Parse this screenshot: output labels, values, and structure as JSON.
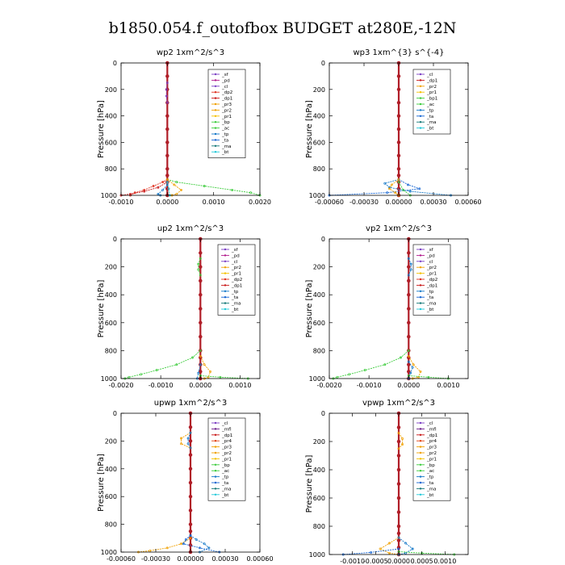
{
  "title": "b1850.054.f_outofbox  BUDGET at280E,-12N",
  "colors": {
    "sf": "#7b3fc4",
    "pd": "#b0188a",
    "cl": "#7b3fc4",
    "dp2": "#e0301e",
    "dp1": "#c81414",
    "pr3": "#f0a000",
    "pr2": "#f0a000",
    "pr1": "#f5c000",
    "bp": "#3ccc3c",
    "ac": "#3ccc3c",
    "tp": "#1478c8",
    "ta": "#1464d2",
    "ma": "#147878",
    "bt": "#20c8d8",
    "mfl": "#6a1a8a",
    "dp4": "#a01010",
    "pr4": "#e04010",
    "bp1": "#3ccc3c",
    "trunk": "#b01e28",
    "frame": "#000000"
  },
  "chart_data": [
    {
      "type": "line",
      "title": "wp2   1xm^2/s^3",
      "ylabel": "Pressure  [hPa]",
      "xlim": [
        -0.001,
        0.002
      ],
      "ylim": [
        1000,
        0
      ],
      "xticks": [
        "-0.0010",
        "0.0000",
        "0.0010",
        "0.0020"
      ],
      "xtick_values": [
        -0.001,
        0.0,
        0.001,
        0.002
      ],
      "yticks": [
        "0",
        "200",
        "400",
        "600",
        "800",
        "1000"
      ],
      "ytick_values": [
        0,
        200,
        400,
        600,
        800,
        1000
      ],
      "legend": [
        "_sf",
        "_pd",
        "_cl",
        "_dp2",
        "_dp1",
        "_pr3",
        "_pr2",
        "_pr1",
        "_bp",
        "_ac",
        "_tp",
        "_ta",
        "_ma",
        "_bt"
      ],
      "legend_position": "top-right",
      "series": [
        {
          "key": "trunk",
          "p": [
            0,
            100,
            200,
            300,
            400,
            500,
            600,
            700,
            800,
            850,
            900,
            950,
            1000
          ],
          "x": [
            0,
            0,
            0,
            0,
            0,
            0,
            0,
            0,
            0,
            0,
            0,
            0,
            0
          ]
        },
        {
          "key": "cl",
          "p": [
            150,
            200,
            250,
            300
          ],
          "x": [
            0,
            -2e-05,
            -2e-05,
            0
          ]
        },
        {
          "key": "ac",
          "p": [
            880,
            900,
            930,
            960,
            980,
            1000
          ],
          "x": [
            0,
            0.0002,
            0.0008,
            0.0014,
            0.0018,
            0.002
          ]
        },
        {
          "key": "dp2",
          "p": [
            880,
            900,
            930,
            960,
            980,
            1000
          ],
          "x": [
            0,
            -0.0001,
            -0.0003,
            -0.0005,
            -0.0007,
            -0.0008
          ]
        },
        {
          "key": "dp1",
          "p": [
            900,
            940,
            970,
            990,
            1000
          ],
          "x": [
            0,
            -0.0002,
            -0.0005,
            -0.0008,
            -0.001
          ]
        },
        {
          "key": "pr2",
          "p": [
            880,
            920,
            960,
            990,
            1000
          ],
          "x": [
            0,
            0.00015,
            0.0003,
            0.0002,
            0.0001
          ]
        },
        {
          "key": "tp",
          "p": [
            920,
            960,
            990,
            1000
          ],
          "x": [
            0,
            -0.0001,
            -0.0002,
            -0.00015
          ]
        },
        {
          "key": "bt",
          "p": [
            900,
            950,
            1000
          ],
          "x": [
            0,
            3e-05,
            5e-05
          ]
        }
      ]
    },
    {
      "type": "line",
      "title": "wp3   1xm^{3} s^{-4}",
      "ylabel": "Pressure  [hPa]",
      "xlim": [
        -0.0006,
        0.0006
      ],
      "ylim": [
        1000,
        0
      ],
      "xticks": [
        "-0.00060",
        "-0.00030",
        "0.00000",
        "0.00030",
        "0.00060"
      ],
      "xtick_values": [
        -0.0006,
        -0.0003,
        0.0,
        0.0003,
        0.0006
      ],
      "yticks": [
        "0",
        "200",
        "400",
        "600",
        "800",
        "1000"
      ],
      "ytick_values": [
        0,
        200,
        400,
        600,
        800,
        1000
      ],
      "legend": [
        "_cl",
        "_dp1",
        "_pr2",
        "_pr1",
        "_bp1",
        "_ac",
        "_tp",
        "_ta",
        "_ma",
        "_bt"
      ],
      "legend_position": "top-right",
      "series": [
        {
          "key": "trunk",
          "p": [
            0,
            100,
            200,
            300,
            400,
            500,
            600,
            700,
            800,
            850,
            900,
            950,
            1000
          ],
          "x": [
            0,
            0,
            0,
            0,
            0,
            0,
            0,
            0,
            0,
            0,
            0,
            0,
            0
          ]
        },
        {
          "key": "tp",
          "p": [
            880,
            910,
            940,
            970,
            1000
          ],
          "x": [
            0,
            -0.00012,
            -8e-05,
            0.0001,
            0.00045
          ]
        },
        {
          "key": "ta",
          "p": [
            880,
            920,
            950,
            980,
            1000
          ],
          "x": [
            0,
            8e-05,
            0.00018,
            -0.0001,
            -0.0006
          ]
        },
        {
          "key": "pr2",
          "p": [
            880,
            920,
            950,
            980,
            1000
          ],
          "x": [
            0,
            -6e-05,
            -8e-05,
            -3e-05,
            0
          ]
        },
        {
          "key": "ac",
          "p": [
            900,
            960,
            1000
          ],
          "x": [
            0,
            4e-05,
            0.0001
          ]
        }
      ]
    },
    {
      "type": "line",
      "title": "up2   1xm^2/s^3",
      "ylabel": "Pressure  [hPa]",
      "xlim": [
        -0.002,
        0.0015
      ],
      "ylim": [
        1000,
        0
      ],
      "xticks": [
        "-0.0020",
        "-0.0010",
        "0.0000",
        "0.0010"
      ],
      "xtick_values": [
        -0.002,
        -0.001,
        0.0,
        0.001
      ],
      "yticks": [
        "0",
        "200",
        "400",
        "600",
        "800",
        "1000"
      ],
      "ytick_values": [
        0,
        200,
        400,
        600,
        800,
        1000
      ],
      "legend": [
        "_sf",
        "_pd",
        "_cl",
        "_pr2",
        "_pr1",
        "_dp2",
        "_dp1",
        "_tp",
        "_ta",
        "_ma",
        "_bt"
      ],
      "legend_position": "top-right",
      "series": [
        {
          "key": "trunk",
          "p": [
            0,
            100,
            200,
            300,
            400,
            500,
            600,
            700,
            800,
            850,
            900,
            950,
            1000
          ],
          "x": [
            0,
            0,
            0,
            0,
            0,
            0,
            0,
            0,
            0,
            0,
            0,
            0,
            0
          ]
        },
        {
          "key": "ac",
          "p": [
            140,
            180,
            220,
            260
          ],
          "x": [
            0,
            -5e-05,
            -5e-05,
            0
          ]
        },
        {
          "key": "ac",
          "p": [
            800,
            850,
            900,
            940,
            970,
            990,
            1000
          ],
          "x": [
            0,
            -0.0002,
            -0.0006,
            -0.0011,
            -0.0015,
            -0.0018,
            -0.0019
          ]
        },
        {
          "key": "pr2",
          "p": [
            840,
            900,
            950,
            990,
            1000
          ],
          "x": [
            0,
            0.0001,
            0.00025,
            0.0002,
            0.0001
          ]
        },
        {
          "key": "bp",
          "p": [
            980,
            990,
            1000
          ],
          "x": [
            0,
            0.0005,
            0.0012
          ]
        },
        {
          "key": "tp",
          "p": [
            900,
            960,
            1000
          ],
          "x": [
            0,
            -5e-05,
            -8e-05
          ]
        }
      ]
    },
    {
      "type": "line",
      "title": "vp2   1xm^2/s^3",
      "ylabel": "Pressure  [hPa]",
      "xlim": [
        -0.002,
        0.0015
      ],
      "ylim": [
        1000,
        0
      ],
      "xticks": [
        "-0.0020",
        "-0.0010",
        "0.0000",
        "0.0010"
      ],
      "xtick_values": [
        -0.002,
        -0.001,
        0.0,
        0.001
      ],
      "yticks": [
        "0",
        "200",
        "400",
        "600",
        "800",
        "1000"
      ],
      "ytick_values": [
        0,
        200,
        400,
        600,
        800,
        1000
      ],
      "legend": [
        "_sf",
        "_pd",
        "_cl",
        "_pr2",
        "_pr1",
        "_dp2",
        "_dp1",
        "_tp",
        "_ta",
        "_ma",
        "_bt"
      ],
      "legend_position": "top-right",
      "series": [
        {
          "key": "trunk",
          "p": [
            0,
            100,
            200,
            300,
            400,
            500,
            600,
            700,
            800,
            850,
            900,
            950,
            1000
          ],
          "x": [
            0,
            0,
            0,
            0,
            0,
            0,
            0,
            0,
            0,
            0,
            0,
            0,
            0
          ]
        },
        {
          "key": "tp",
          "p": [
            140,
            180,
            220,
            260
          ],
          "x": [
            0,
            6e-05,
            6e-05,
            0
          ]
        },
        {
          "key": "ac",
          "p": [
            800,
            850,
            900,
            940,
            970,
            990,
            1000
          ],
          "x": [
            0,
            -0.0002,
            -0.0006,
            -0.0011,
            -0.0015,
            -0.0018,
            -0.0019
          ]
        },
        {
          "key": "pr2",
          "p": [
            840,
            900,
            950,
            990,
            1000
          ],
          "x": [
            0,
            0.00012,
            0.0003,
            0.00025,
            0.0001
          ]
        },
        {
          "key": "tp",
          "p": [
            880,
            920,
            960,
            1000
          ],
          "x": [
            0,
            0.0001,
            5e-05,
            0
          ]
        },
        {
          "key": "bp",
          "p": [
            980,
            990,
            1000
          ],
          "x": [
            0,
            0.0005,
            0.001
          ]
        }
      ]
    },
    {
      "type": "line",
      "title": "upwp   1xm^2/s^3",
      "ylabel": "Pressure  [hPa]",
      "xlim": [
        -0.0006,
        0.0006
      ],
      "ylim": [
        1000,
        0
      ],
      "xticks": [
        "-0.00060",
        "-0.00030",
        "0.00000",
        "0.00030",
        "0.00060"
      ],
      "xtick_values": [
        -0.0006,
        -0.0003,
        0.0,
        0.0003,
        0.0006
      ],
      "yticks": [
        "0",
        "200",
        "400",
        "600",
        "800",
        "1000"
      ],
      "ytick_values": [
        0,
        200,
        400,
        600,
        800,
        1000
      ],
      "legend": [
        "_cl",
        "_mfl",
        "_dp1",
        "_pr4",
        "_pr3",
        "_pr2",
        "_pr1",
        "_bp",
        "_ac",
        "_tp",
        "_ta",
        "_ma",
        "_bt"
      ],
      "legend_position": "top-right",
      "series": [
        {
          "key": "trunk",
          "p": [
            0,
            100,
            200,
            300,
            400,
            500,
            600,
            700,
            800,
            850,
            900,
            950,
            1000
          ],
          "x": [
            0,
            0,
            0,
            0,
            0,
            0,
            0,
            0,
            0,
            0,
            0,
            0,
            0
          ]
        },
        {
          "key": "pr2",
          "p": [
            140,
            180,
            220,
            250
          ],
          "x": [
            0,
            -8e-05,
            -8e-05,
            0
          ]
        },
        {
          "key": "tp",
          "p": [
            140,
            180,
            220,
            250
          ],
          "x": [
            0,
            -2e-05,
            -2e-05,
            0
          ]
        },
        {
          "key": "pr2",
          "p": [
            900,
            940,
            970,
            990,
            1000
          ],
          "x": [
            0,
            -8e-05,
            -0.0002,
            -0.00035,
            -0.00045
          ]
        },
        {
          "key": "tp",
          "p": [
            880,
            910,
            940,
            970,
            1000
          ],
          "x": [
            0,
            5e-05,
            0.00012,
            0.00016,
            8e-05
          ]
        },
        {
          "key": "ta",
          "p": [
            880,
            910,
            940,
            970,
            1000
          ],
          "x": [
            0,
            -4e-05,
            -6e-05,
            8e-05,
            0.00025
          ]
        }
      ]
    },
    {
      "type": "line",
      "title": "vpwp   1xm^2/s^3",
      "ylabel": "Pressure  [hPa]",
      "xlim": [
        -0.0015,
        0.0015
      ],
      "ylim": [
        1000,
        0
      ],
      "xticks": [
        "-0.0010",
        "-0.0005",
        "0.0000",
        "0.0005",
        "0.0010"
      ],
      "xtick_values": [
        -0.001,
        -0.0005,
        0.0,
        0.0005,
        0.001
      ],
      "yticks": [
        "0",
        "200",
        "400",
        "600",
        "800",
        "1000"
      ],
      "ytick_values": [
        0,
        200,
        400,
        600,
        800,
        1000
      ],
      "legend": [
        "_cl",
        "_mfl",
        "_dp1",
        "_pr4",
        "_pr3",
        "_pr2",
        "_pr1",
        "_bp",
        "_ac",
        "_tp",
        "_ta",
        "_ma",
        "_bt"
      ],
      "legend_position": "top-right",
      "series": [
        {
          "key": "trunk",
          "p": [
            0,
            100,
            200,
            300,
            400,
            500,
            600,
            700,
            800,
            850,
            900,
            950,
            1000
          ],
          "x": [
            0,
            0,
            0,
            0,
            0,
            0,
            0,
            0,
            0,
            0,
            0,
            0,
            0
          ]
        },
        {
          "key": "pr2",
          "p": [
            140,
            180,
            220,
            250
          ],
          "x": [
            0,
            8e-05,
            8e-05,
            0
          ]
        },
        {
          "key": "pr2",
          "p": [
            880,
            920,
            960,
            990,
            1000
          ],
          "x": [
            0,
            -0.0002,
            -0.0004,
            -0.0002,
            0
          ]
        },
        {
          "key": "tp",
          "p": [
            880,
            920,
            960,
            990,
            1000
          ],
          "x": [
            0,
            0.00015,
            0.0003,
            0.00015,
            0
          ]
        },
        {
          "key": "ta",
          "p": [
            960,
            985,
            1000
          ],
          "x": [
            0,
            -0.0006,
            -0.0012
          ]
        },
        {
          "key": "bp",
          "p": [
            980,
            990,
            1000
          ],
          "x": [
            0,
            0.0005,
            0.0012
          ]
        }
      ]
    }
  ]
}
